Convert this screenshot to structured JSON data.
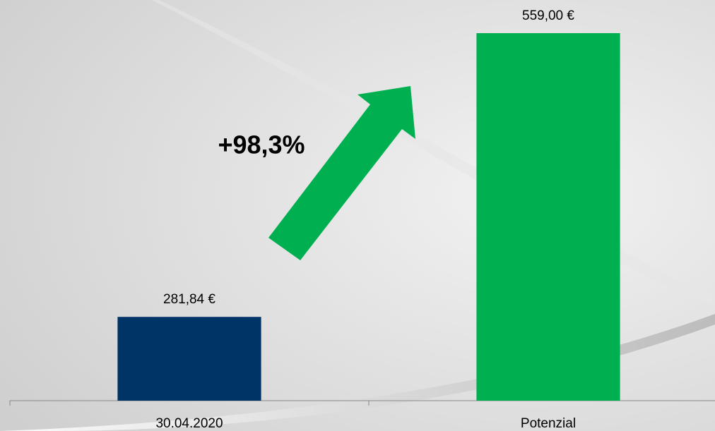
{
  "chart_data": {
    "type": "bar",
    "annotation": "+98,3%",
    "categories": [
      "30.04.2020",
      "Potenzial"
    ],
    "values": [
      281.84,
      559.0
    ],
    "value_labels": [
      "281,84 €",
      "559,00 €"
    ],
    "colors": [
      "#003366",
      "#00b050"
    ],
    "ylim": [
      200,
      590
    ]
  }
}
